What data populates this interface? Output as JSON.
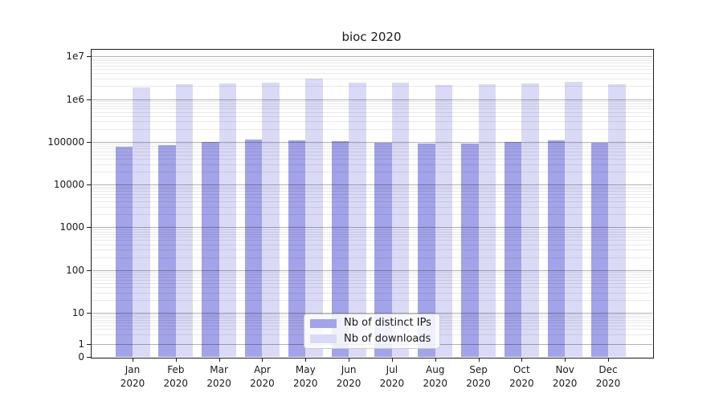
{
  "chart_data": {
    "type": "bar",
    "title": "bioc 2020",
    "yscale": "symlog",
    "grid": "major+minor horizontal",
    "legend_position": "lower center",
    "year_label": "2020",
    "categories": [
      "Jan 2020",
      "Feb 2020",
      "Mar 2020",
      "Apr 2020",
      "May 2020",
      "Jun 2020",
      "Jul 2020",
      "Aug 2020",
      "Sep 2020",
      "Oct 2020",
      "Nov 2020",
      "Dec 2020"
    ],
    "series": [
      {
        "name": "Nb of distinct IPs",
        "color": "#a3a3e9",
        "values": [
          75000,
          85000,
          100000,
          111000,
          107000,
          102000,
          95000,
          90000,
          89000,
          99000,
          107000,
          95000
        ]
      },
      {
        "name": "Nb of downloads",
        "color": "#dadaf6",
        "values": [
          1850000,
          2250000,
          2350000,
          2400000,
          2950000,
          2400000,
          2380000,
          2100000,
          2200000,
          2300000,
          2550000,
          2200000
        ]
      }
    ],
    "y_ticks": [
      {
        "value": 0,
        "label": "0"
      },
      {
        "value": 1,
        "label": "1"
      },
      {
        "value": 10,
        "label": "10"
      },
      {
        "value": 100,
        "label": "100"
      },
      {
        "value": 1000,
        "label": "1000"
      },
      {
        "value": 10000,
        "label": "10000"
      },
      {
        "value": 100000,
        "label": "100000"
      },
      {
        "value": 1000000,
        "label": "1e6"
      },
      {
        "value": 10000000,
        "label": "1e7"
      }
    ],
    "ylim": [
      0,
      14000000
    ]
  }
}
